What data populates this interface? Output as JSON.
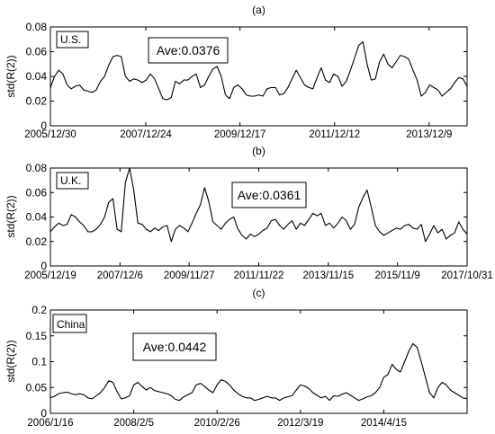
{
  "chart_data": [
    {
      "type": "line",
      "panel_label": "(a)",
      "country": "U.S.",
      "annotation": "Ave:0.0376",
      "ylabel": "std(R(2))",
      "ylim": [
        0,
        0.08
      ],
      "yticks": [
        0,
        0.02,
        0.04,
        0.06,
        0.08
      ],
      "ytick_labels": [
        "0",
        "0.02",
        "0.04",
        "0.06",
        "0.08"
      ],
      "xlim": [
        0,
        100
      ],
      "xticks": [
        {
          "x": 0,
          "label": "2005/12/30"
        },
        {
          "x": 22.9,
          "label": "2007/12/24"
        },
        {
          "x": 45.5,
          "label": "2009/12/17"
        },
        {
          "x": 68.2,
          "label": "2011/12/12"
        },
        {
          "x": 90.9,
          "label": "2013/12/9"
        }
      ],
      "series": [
        {
          "values": [
            0.031,
            0.04,
            0.045,
            0.042,
            0.033,
            0.03,
            0.032,
            0.033,
            0.029,
            0.028,
            0.027,
            0.029,
            0.036,
            0.04,
            0.049,
            0.056,
            0.057,
            0.056,
            0.04,
            0.036,
            0.038,
            0.037,
            0.035,
            0.037,
            0.042,
            0.038,
            0.03,
            0.022,
            0.021,
            0.023,
            0.036,
            0.034,
            0.037,
            0.037,
            0.04,
            0.042,
            0.031,
            0.033,
            0.04,
            0.046,
            0.048,
            0.04,
            0.025,
            0.022,
            0.031,
            0.033,
            0.03,
            0.025,
            0.024,
            0.024,
            0.025,
            0.024,
            0.03,
            0.031,
            0.031,
            0.025,
            0.026,
            0.031,
            0.038,
            0.045,
            0.039,
            0.033,
            0.031,
            0.03,
            0.039,
            0.047,
            0.037,
            0.035,
            0.042,
            0.04,
            0.032,
            0.036,
            0.045,
            0.055,
            0.065,
            0.068,
            0.05,
            0.037,
            0.038,
            0.052,
            0.058,
            0.05,
            0.047,
            0.052,
            0.057,
            0.056,
            0.054,
            0.045,
            0.037,
            0.024,
            0.027,
            0.033,
            0.031,
            0.029,
            0.024,
            0.027,
            0.03,
            0.035,
            0.039,
            0.038,
            0.032
          ],
          "color": "#000000"
        }
      ]
    },
    {
      "type": "line",
      "panel_label": "(b)",
      "country": "U.K.",
      "annotation": "Ave:0.0361",
      "ylabel": "std(R(2))",
      "ylim": [
        0,
        0.08
      ],
      "yticks": [
        0,
        0.02,
        0.04,
        0.06,
        0.08
      ],
      "ytick_labels": [
        "0",
        "0.02",
        "0.04",
        "0.06",
        "0.08"
      ],
      "xlim": [
        0,
        100
      ],
      "xticks": [
        {
          "x": 0,
          "label": "2005/12/19"
        },
        {
          "x": 16.7,
          "label": "2007/12/6"
        },
        {
          "x": 33.3,
          "label": "2009/11/27"
        },
        {
          "x": 50,
          "label": "2011/11/22"
        },
        {
          "x": 66.7,
          "label": "2013/11/15"
        },
        {
          "x": 83.3,
          "label": "2015/11/9"
        },
        {
          "x": 100,
          "label": "2017/10/31"
        }
      ],
      "series": [
        {
          "values": [
            0.028,
            0.032,
            0.035,
            0.033,
            0.034,
            0.042,
            0.04,
            0.036,
            0.033,
            0.028,
            0.028,
            0.03,
            0.034,
            0.04,
            0.052,
            0.055,
            0.03,
            0.028,
            0.068,
            0.08,
            0.062,
            0.035,
            0.034,
            0.03,
            0.028,
            0.031,
            0.029,
            0.032,
            0.033,
            0.02,
            0.03,
            0.033,
            0.031,
            0.028,
            0.035,
            0.043,
            0.05,
            0.064,
            0.053,
            0.036,
            0.033,
            0.03,
            0.035,
            0.038,
            0.04,
            0.03,
            0.025,
            0.022,
            0.026,
            0.024,
            0.026,
            0.029,
            0.031,
            0.037,
            0.038,
            0.033,
            0.03,
            0.034,
            0.037,
            0.03,
            0.035,
            0.033,
            0.038,
            0.043,
            0.041,
            0.043,
            0.033,
            0.035,
            0.031,
            0.035,
            0.04,
            0.037,
            0.03,
            0.034,
            0.048,
            0.056,
            0.062,
            0.048,
            0.033,
            0.028,
            0.025,
            0.027,
            0.029,
            0.031,
            0.03,
            0.033,
            0.034,
            0.031,
            0.03,
            0.034,
            0.02,
            0.026,
            0.033,
            0.027,
            0.03,
            0.022,
            0.025,
            0.027,
            0.036,
            0.03,
            0.026
          ],
          "color": "#000000"
        }
      ]
    },
    {
      "type": "line",
      "panel_label": "(c)",
      "country": "China",
      "annotation": "Ave:0.0442",
      "ylabel": "std(R(2))",
      "ylim": [
        0,
        0.2
      ],
      "yticks": [
        0,
        0.05,
        0.1,
        0.15,
        0.2
      ],
      "ytick_labels": [
        "0",
        "0.05",
        "0.1",
        "0.15",
        "0.2"
      ],
      "xlim": [
        0,
        100
      ],
      "xticks": [
        {
          "x": 0,
          "label": "2006/1/16"
        },
        {
          "x": 20,
          "label": "2008/2/5"
        },
        {
          "x": 40,
          "label": "2010/2/26"
        },
        {
          "x": 60,
          "label": "2012/3/19"
        },
        {
          "x": 80,
          "label": "2014/4/15"
        }
      ],
      "series": [
        {
          "values": [
            0.03,
            0.033,
            0.038,
            0.04,
            0.041,
            0.038,
            0.036,
            0.038,
            0.036,
            0.03,
            0.028,
            0.034,
            0.04,
            0.05,
            0.063,
            0.06,
            0.042,
            0.028,
            0.03,
            0.034,
            0.055,
            0.06,
            0.052,
            0.045,
            0.05,
            0.044,
            0.042,
            0.04,
            0.038,
            0.034,
            0.027,
            0.025,
            0.032,
            0.036,
            0.04,
            0.055,
            0.058,
            0.052,
            0.045,
            0.04,
            0.055,
            0.065,
            0.062,
            0.055,
            0.045,
            0.038,
            0.033,
            0.03,
            0.03,
            0.025,
            0.027,
            0.03,
            0.033,
            0.03,
            0.03,
            0.025,
            0.03,
            0.032,
            0.034,
            0.045,
            0.055,
            0.053,
            0.048,
            0.04,
            0.035,
            0.03,
            0.033,
            0.025,
            0.034,
            0.033,
            0.037,
            0.04,
            0.035,
            0.03,
            0.025,
            0.028,
            0.032,
            0.034,
            0.04,
            0.05,
            0.07,
            0.075,
            0.095,
            0.085,
            0.08,
            0.1,
            0.12,
            0.135,
            0.128,
            0.1,
            0.07,
            0.04,
            0.03,
            0.05,
            0.06,
            0.055,
            0.045,
            0.04,
            0.035,
            0.03,
            0.028
          ],
          "color": "#000000"
        }
      ]
    }
  ]
}
